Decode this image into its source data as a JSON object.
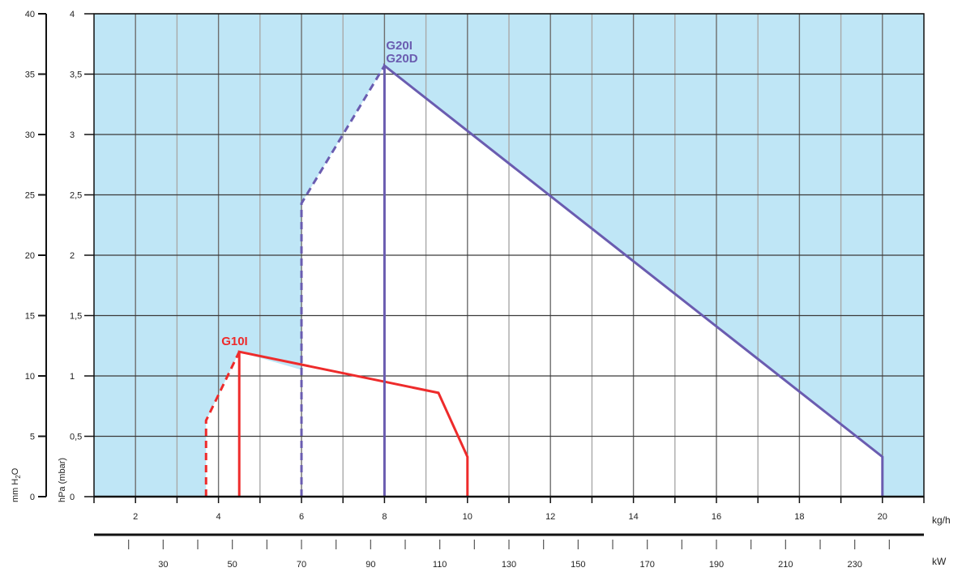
{
  "chart_data": {
    "type": "line",
    "units": {
      "mmh2o": "mm H",
      "mmh2o_sub": "2",
      "mmh2o_tail": "O",
      "hpa": "hPa (mbar)",
      "kgh": "kg/h",
      "kw": "kW"
    },
    "y_mm": {
      "ticks": [
        "0",
        "5",
        "10",
        "15",
        "20",
        "25",
        "30",
        "35",
        "40"
      ],
      "range": [
        0,
        40
      ]
    },
    "y_hpa": {
      "ticks": [
        "0",
        "0,5",
        "1",
        "1,5",
        "2",
        "2,5",
        "3",
        "3,5",
        "4"
      ],
      "range": [
        0,
        4
      ]
    },
    "x_kgh": {
      "labels": [
        "2",
        "4",
        "6",
        "8",
        "10",
        "12",
        "14",
        "16",
        "18",
        "20"
      ],
      "range": [
        1,
        21
      ]
    },
    "x_kw": {
      "labels": [
        "30",
        "50",
        "70",
        "90",
        "110",
        "130",
        "150",
        "170",
        "190",
        "210",
        "230"
      ],
      "range": [
        10,
        250
      ]
    },
    "grid": true,
    "series": [
      {
        "name": "G10I",
        "color": "#ee2b2b",
        "dashed": [
          [
            3.7,
            0
          ],
          [
            3.7,
            0.63
          ],
          [
            4.5,
            1.2
          ]
        ],
        "solid": [
          [
            4.5,
            0
          ],
          [
            4.5,
            1.2
          ],
          [
            9.3,
            0.86
          ],
          [
            10,
            0.33
          ],
          [
            10,
            0
          ]
        ]
      },
      {
        "name": "G20I",
        "name2": "G20D",
        "color": "#6a5cb0",
        "dashed": [
          [
            6,
            0
          ],
          [
            6,
            2.43
          ],
          [
            8,
            3.57
          ]
        ],
        "solid": [
          [
            8,
            0
          ],
          [
            8,
            3.57
          ],
          [
            20,
            0.33
          ],
          [
            20,
            0
          ]
        ]
      }
    ]
  }
}
